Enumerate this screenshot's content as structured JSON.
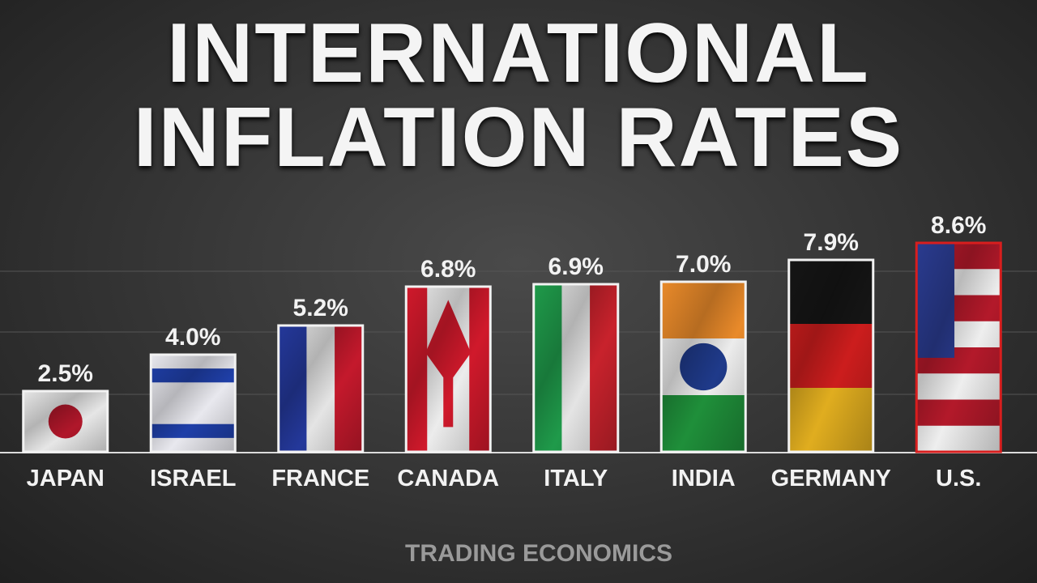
{
  "chart_data": {
    "type": "bar",
    "title": "INTERNATIONAL INFLATION RATES",
    "source": "TRADING ECONOMICS",
    "categories": [
      "JAPAN",
      "ISRAEL",
      "FRANCE",
      "CANADA",
      "ITALY",
      "INDIA",
      "GERMANY",
      "U.S."
    ],
    "values": [
      2.5,
      4.0,
      5.2,
      6.8,
      6.9,
      7.0,
      7.9,
      8.6
    ],
    "value_labels": [
      "2.5%",
      "4.0%",
      "5.2%",
      "6.8%",
      "6.9%",
      "7.0%",
      "7.9%",
      "8.6%"
    ],
    "flags": [
      {
        "dir": "h",
        "colors": [
          "#e6e6e6"
        ],
        "emblem": "#b0172a"
      },
      {
        "dir": "h",
        "colors": [
          "#e8e8ee",
          "#1f3fa8",
          "#e8e8ee",
          "#e8e8ee",
          "#e8e8ee",
          "#1f3fa8",
          "#e8e8ee"
        ],
        "emblem": null
      },
      {
        "dir": "v",
        "colors": [
          "#24389a",
          "#e4e4e4",
          "#c4192c"
        ],
        "emblem": null
      },
      {
        "dir": "v",
        "colors": [
          "#d0192b",
          "#ececec",
          "#ececec",
          "#d0192b"
        ],
        "emblem": "#d0192b"
      },
      {
        "dir": "v",
        "colors": [
          "#1f9a4a",
          "#e4e4e4",
          "#c8222c"
        ],
        "emblem": null
      },
      {
        "dir": "h",
        "colors": [
          "#e98a2a",
          "#ececec",
          "#1f8f3a"
        ],
        "emblem": "#1f3a8a"
      },
      {
        "dir": "h",
        "colors": [
          "#151515",
          "#cc1d1d",
          "#e0ad1f"
        ],
        "emblem": null
      },
      {
        "dir": "h",
        "colors": [
          "#b3192a",
          "#eeeeee",
          "#b3192a",
          "#eeeeee",
          "#b3192a",
          "#eeeeee",
          "#b3192a",
          "#eeeeee"
        ],
        "emblem": "#2a3b8f"
      }
    ],
    "borders": [
      "#f2f2f2",
      "#f2f2f2",
      "#f2f2f2",
      "#f2f2f2",
      "#f2f2f2",
      "#f2f2f2",
      "#f2f2f2",
      "#d81e1e"
    ],
    "ylim": [
      0,
      10
    ]
  }
}
